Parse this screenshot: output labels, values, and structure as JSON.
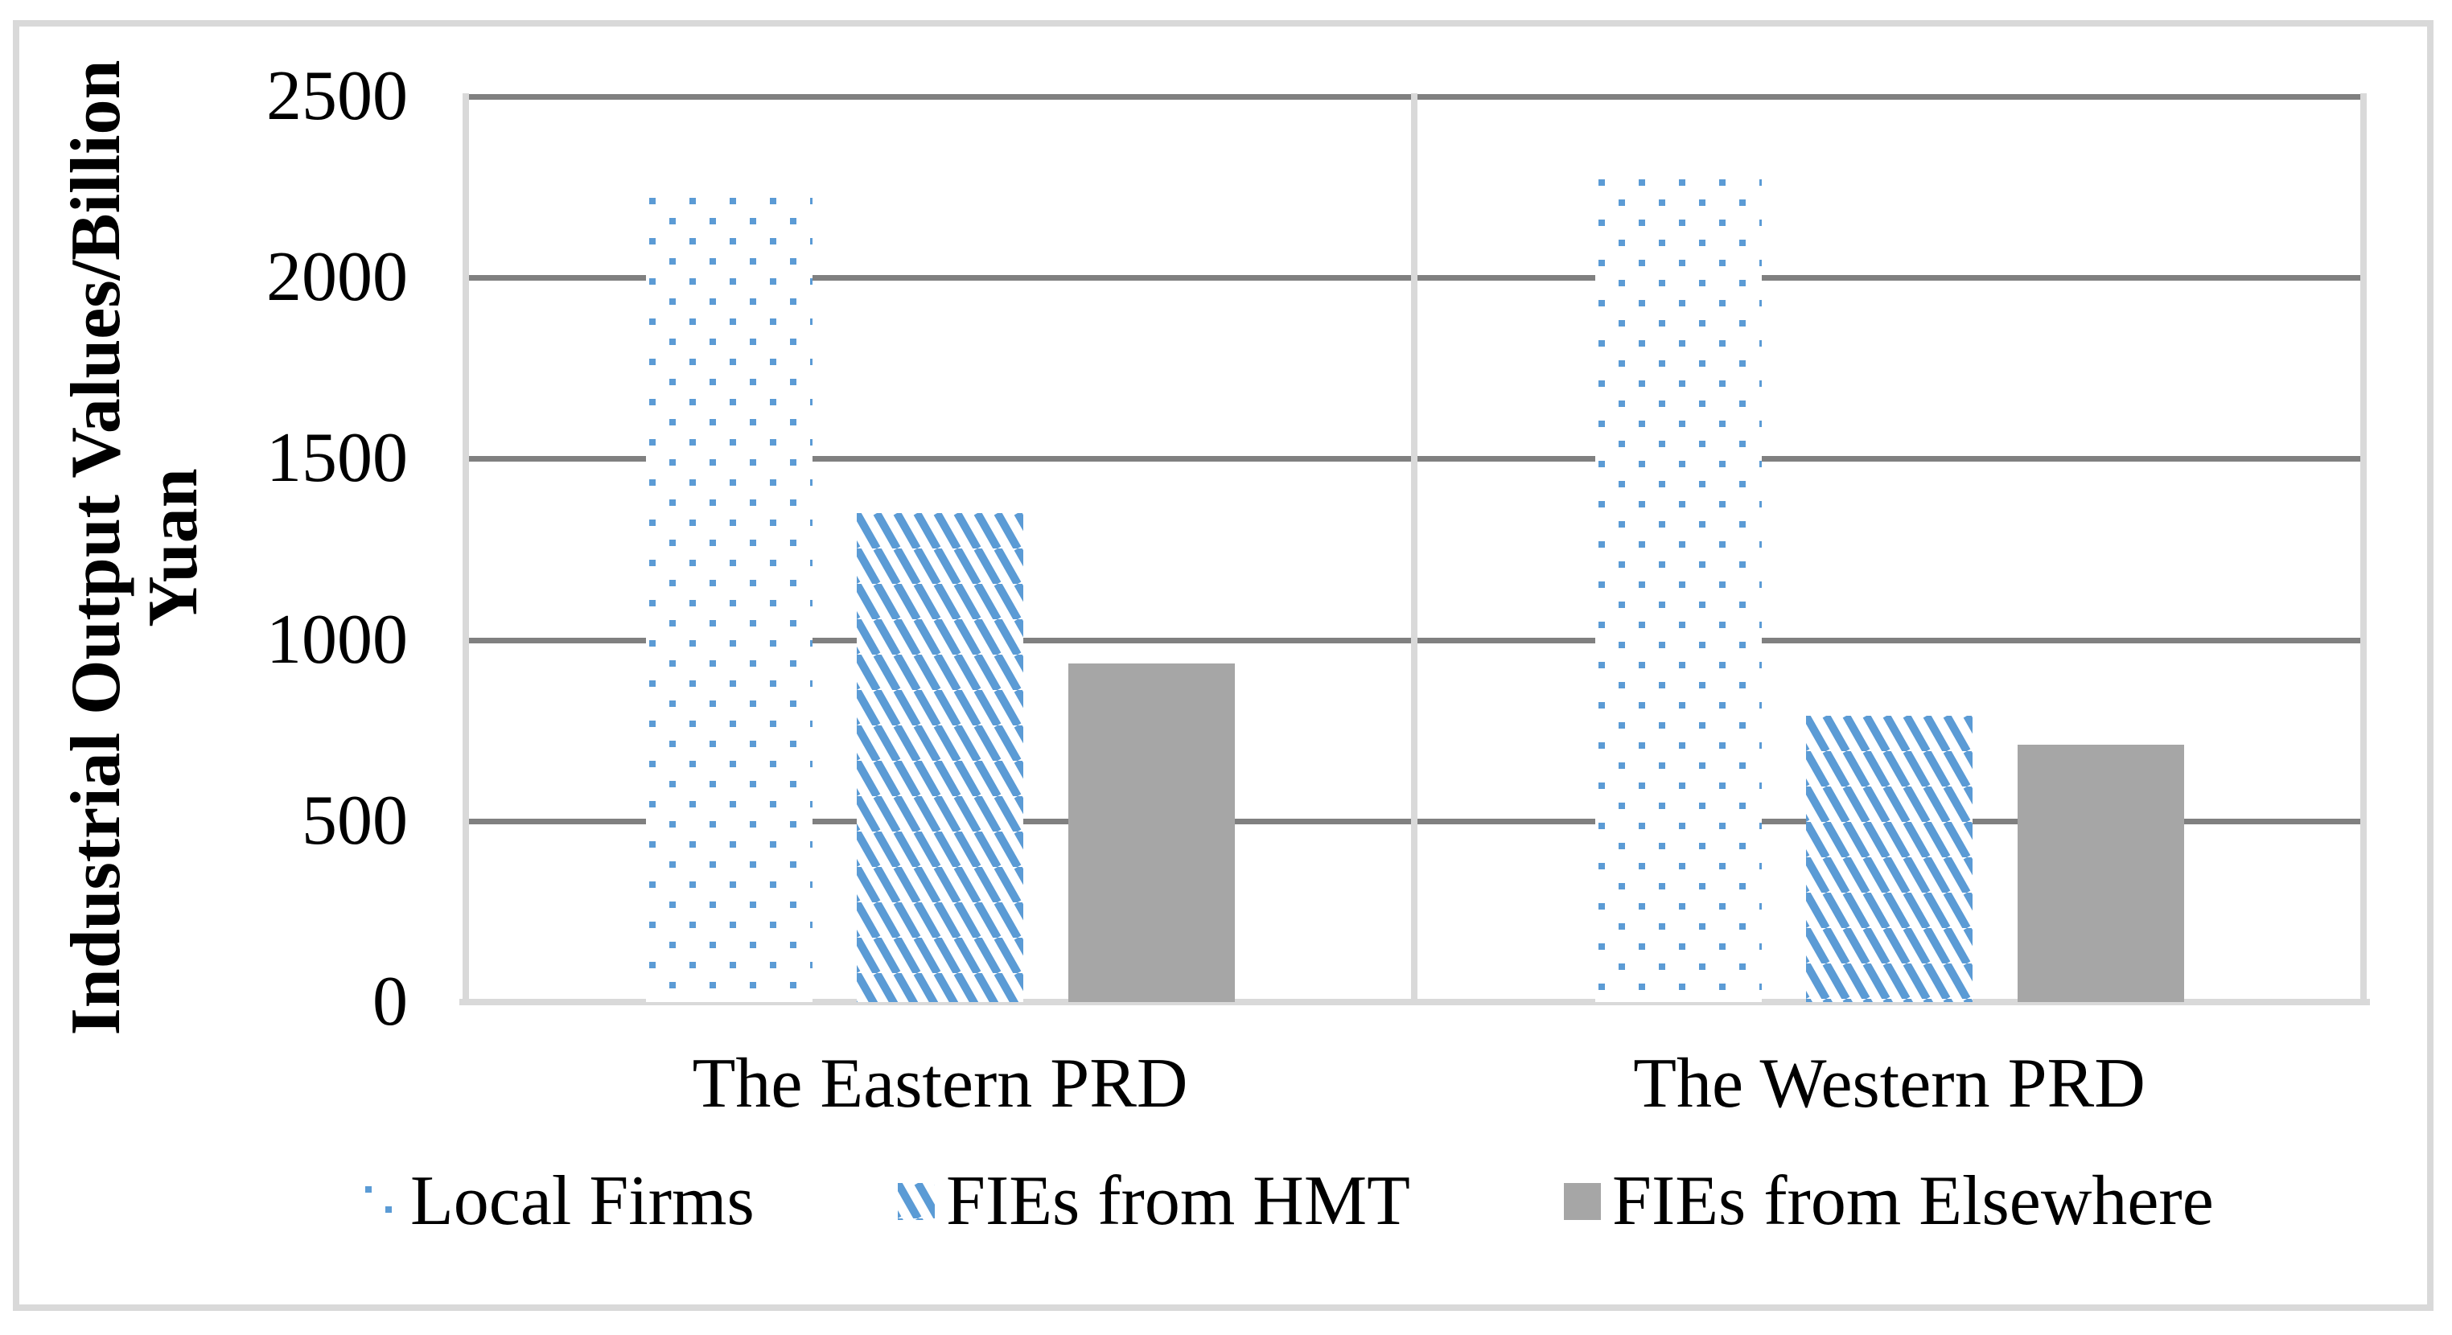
{
  "chart_data": {
    "type": "bar",
    "title": "",
    "categories": [
      "The Eastern PRD",
      "The Western PRD"
    ],
    "series": [
      {
        "name": "Local Firms",
        "pattern": "dots",
        "color": "#5B9BD5",
        "values": [
          2230,
          2280
        ]
      },
      {
        "name": "FIEs from HMT",
        "pattern": "diagonal-hatch",
        "color": "#5B9BD5",
        "values": [
          1350,
          790
        ]
      },
      {
        "name": "FIEs from Elsewhere",
        "pattern": "solid",
        "color": "#A6A6A6",
        "values": [
          935,
          710
        ]
      }
    ],
    "xlabel": "",
    "ylabel": "Industrial Output Values/Billion Yuan",
    "ylabel_lines": [
      "Industrial Output Values/Billion",
      "Yuan"
    ],
    "yticks": [
      0,
      500,
      1000,
      1500,
      2000,
      2500
    ],
    "ylim": [
      0,
      2500
    ],
    "grid": true,
    "legend_position": "bottom"
  },
  "colors": {
    "accent_blue": "#5B9BD5",
    "bar_gray": "#A6A6A6",
    "gridline_gray": "#808080",
    "axis_light_gray": "#D9D9D9",
    "text": "#000000",
    "background": "#FFFFFF"
  }
}
